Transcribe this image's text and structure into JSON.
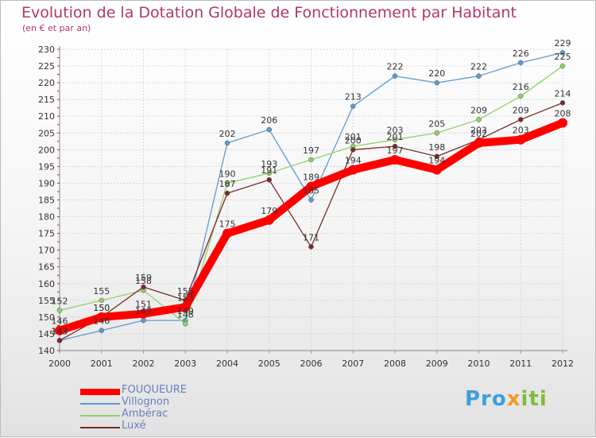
{
  "chart_data": {
    "type": "line",
    "title": "Evolution de la Dotation Globale de Fonctionnement par Habitant",
    "subtitle": "(en € et par an)",
    "xlabel": "",
    "ylabel": "",
    "categories": [
      "2000",
      "2001",
      "2002",
      "2003",
      "2004",
      "2005",
      "2006",
      "2007",
      "2008",
      "2009",
      "2010",
      "2011",
      "2012"
    ],
    "ylim": [
      140,
      230
    ],
    "yticks": [
      140,
      145,
      150,
      155,
      160,
      165,
      170,
      175,
      180,
      185,
      190,
      195,
      200,
      205,
      210,
      215,
      220,
      225,
      230
    ],
    "grid": true,
    "series": [
      {
        "name": "FOUQUEURE",
        "color": "#ff0000",
        "values": [
          146,
          150,
          151,
          153,
          175,
          179,
          189,
          194,
          197,
          194,
          202,
          203,
          208
        ]
      },
      {
        "name": "Villognon",
        "color": "#5e9bd1",
        "values": [
          143,
          146,
          149,
          149,
          202,
          206,
          185,
          213,
          222,
          220,
          222,
          226,
          229
        ]
      },
      {
        "name": "Ambérac",
        "color": "#8fd16a",
        "values": [
          152,
          155,
          158,
          148,
          190,
          193,
          197,
          201,
          203,
          205,
          209,
          216,
          225
        ]
      },
      {
        "name": "Luxé",
        "color": "#7a2a2a",
        "values": [
          143,
          150,
          159,
          155,
          187,
          191,
          171,
          200,
          201,
          198,
          203,
          209,
          214
        ]
      }
    ]
  },
  "brand": {
    "p1": "Pro",
    "p2": "x",
    "p3": "iti"
  }
}
